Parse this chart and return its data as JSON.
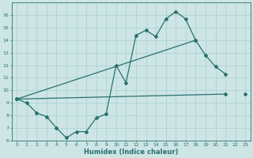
{
  "xlabel": "Humidex (Indice chaleur)",
  "x": [
    0,
    1,
    2,
    3,
    4,
    5,
    6,
    7,
    8,
    9,
    10,
    11,
    12,
    13,
    14,
    15,
    16,
    17,
    18,
    19,
    20,
    21,
    22,
    23
  ],
  "line1": [
    9.3,
    9.0,
    8.2,
    7.9,
    7.0,
    6.2,
    6.7,
    6.7,
    7.8,
    8.1,
    12.0,
    10.6,
    14.4,
    14.8,
    14.3,
    15.7,
    16.3,
    15.7,
    14.0,
    12.8,
    11.9,
    11.3,
    null,
    9.7
  ],
  "line2": [
    9.3,
    null,
    null,
    null,
    null,
    null,
    null,
    null,
    null,
    null,
    null,
    null,
    null,
    null,
    null,
    null,
    null,
    null,
    14.0,
    null,
    null,
    null,
    null,
    null
  ],
  "line2_pts": [
    [
      0,
      9.3
    ],
    [
      18,
      14.0
    ]
  ],
  "line3_pts": [
    [
      0,
      9.3
    ],
    [
      21,
      9.7
    ]
  ],
  "color": "#2a7070",
  "bg_color": "#cde5e5",
  "grid_color": "#aacfcf",
  "ylim": [
    6,
    17
  ],
  "xlim": [
    -0.5,
    23.5
  ],
  "yticks": [
    6,
    7,
    8,
    9,
    10,
    11,
    12,
    13,
    14,
    15,
    16
  ],
  "xticks": [
    0,
    1,
    2,
    3,
    4,
    5,
    6,
    7,
    8,
    9,
    10,
    11,
    12,
    13,
    14,
    15,
    16,
    17,
    18,
    19,
    20,
    21,
    22,
    23
  ]
}
